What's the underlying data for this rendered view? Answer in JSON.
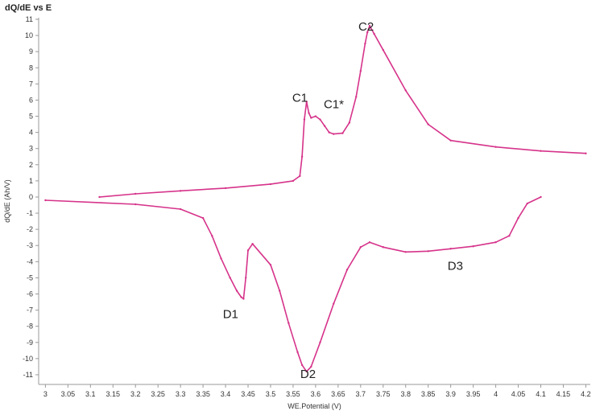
{
  "chart_data": {
    "type": "scatter",
    "title": "dQ/dE vs E",
    "xlabel": "WE.Potential (V)",
    "ylabel": "dQ/dE (Ah/V)",
    "xlim": [
      2.985,
      4.21
    ],
    "ylim": [
      -11.6,
      11.1
    ],
    "xticks": [
      "3",
      "3.05",
      "3.1",
      "3.15",
      "3.2",
      "3.25",
      "3.3",
      "3.35",
      "3.4",
      "3.45",
      "3.5",
      "3.55",
      "3.6",
      "3.65",
      "3.7",
      "3.75",
      "3.8",
      "3.85",
      "3.9",
      "3.95",
      "4",
      "4.05",
      "4.1",
      "4.15",
      "4.2"
    ],
    "yticks": [
      "-11",
      "-10",
      "-9",
      "-8",
      "-7",
      "-6",
      "-5",
      "-4",
      "-3",
      "-2",
      "-1",
      "0",
      "1",
      "2",
      "3",
      "4",
      "5",
      "6",
      "7",
      "8",
      "9",
      "10",
      "11"
    ],
    "grid": false,
    "color": "#d6338a",
    "series": [
      {
        "x": [
          3.12,
          3.2,
          3.3,
          3.4,
          3.5,
          3.55,
          3.565,
          3.57,
          3.575,
          3.58,
          3.585,
          3.59,
          3.6,
          3.61,
          3.62,
          3.63,
          3.64,
          3.66,
          3.675,
          3.69,
          3.7,
          3.71,
          3.715,
          3.72,
          3.73,
          3.75,
          3.8,
          3.85,
          3.9,
          4.0,
          4.1,
          4.2
        ],
        "y": [
          0.0,
          0.2,
          0.38,
          0.55,
          0.8,
          1.0,
          1.3,
          2.5,
          4.8,
          5.9,
          5.2,
          4.9,
          5.0,
          4.8,
          4.4,
          4.0,
          3.9,
          3.95,
          4.6,
          6.2,
          7.8,
          9.5,
          10.2,
          10.6,
          10.1,
          9.1,
          6.6,
          4.5,
          3.5,
          3.1,
          2.85,
          2.7
        ]
      },
      {
        "x": [
          3.0,
          3.2,
          3.3,
          3.35,
          3.37,
          3.39,
          3.41,
          3.425,
          3.435,
          3.44,
          3.445,
          3.45,
          3.46,
          3.5,
          3.52,
          3.54,
          3.56,
          3.57,
          3.58,
          3.59,
          3.61,
          3.64,
          3.67,
          3.7,
          3.72,
          3.75,
          3.8,
          3.85,
          3.9,
          3.95,
          4.0,
          4.03,
          4.05,
          4.07,
          4.1
        ],
        "y": [
          -0.2,
          -0.45,
          -0.75,
          -1.3,
          -2.4,
          -3.8,
          -5.0,
          -5.8,
          -6.2,
          -6.3,
          -5.0,
          -3.3,
          -2.9,
          -4.2,
          -5.8,
          -7.8,
          -9.6,
          -10.4,
          -10.8,
          -10.5,
          -9.0,
          -6.6,
          -4.5,
          -3.1,
          -2.8,
          -3.1,
          -3.4,
          -3.35,
          -3.2,
          -3.05,
          -2.8,
          -2.4,
          -1.3,
          -0.4,
          0.0
        ]
      }
    ],
    "annotations": [
      {
        "text": "C1",
        "x": 3.548,
        "y": 5.9
      },
      {
        "text": "C1*",
        "x": 3.618,
        "y": 5.5
      },
      {
        "text": "C2",
        "x": 3.695,
        "y": 10.3
      },
      {
        "text": "D1",
        "x": 3.394,
        "y": -7.5
      },
      {
        "text": "D2",
        "x": 3.566,
        "y": -11.2
      },
      {
        "text": "D3",
        "x": 3.893,
        "y": -4.5
      }
    ]
  }
}
